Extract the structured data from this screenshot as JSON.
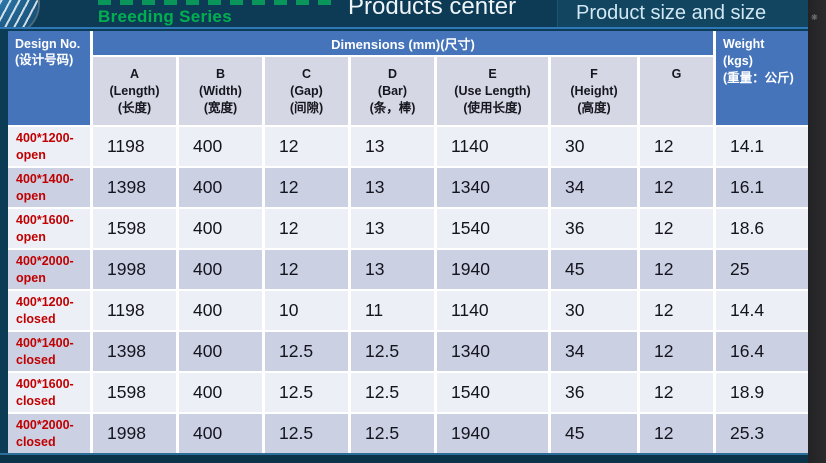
{
  "top_bar": {
    "brand": "Breeding Series",
    "title_left": "Products center",
    "title_right": "Product size and size"
  },
  "table": {
    "design_header": {
      "line1": "Design No.",
      "line2": "(设计号码)"
    },
    "dimensions_header": "Dimensions (mm)(尺寸)",
    "weight_header": {
      "line1": "Weight",
      "line2": "(kgs)",
      "line3": "(重量：公斤)"
    },
    "columns": [
      {
        "letter": "A",
        "en": "(Length)",
        "zh": "(长度)"
      },
      {
        "letter": "B",
        "en": "(Width)",
        "zh": "(宽度)"
      },
      {
        "letter": "C",
        "en": "(Gap)",
        "zh": "(间隙)"
      },
      {
        "letter": "D",
        "en": "(Bar)",
        "zh": "(条，棒)"
      },
      {
        "letter": "E",
        "en": "(Use Length)",
        "zh": "(使用长度)"
      },
      {
        "letter": "F",
        "en": "(Height)",
        "zh": "(高度)"
      },
      {
        "letter": "G",
        "en": "",
        "zh": ""
      }
    ],
    "rows": [
      {
        "design1": "400*1200-",
        "design2": "open",
        "a": "1198",
        "b": "400",
        "c": "12",
        "d": "13",
        "e": "1140",
        "f": "30",
        "g": "12",
        "weight": "14.1"
      },
      {
        "design1": "400*1400-",
        "design2": "open",
        "a": "1398",
        "b": "400",
        "c": "12",
        "d": "13",
        "e": "1340",
        "f": "34",
        "g": "12",
        "weight": "16.1"
      },
      {
        "design1": "400*1600-",
        "design2": "open",
        "a": "1598",
        "b": "400",
        "c": "12",
        "d": "13",
        "e": "1540",
        "f": "36",
        "g": "12",
        "weight": "18.6"
      },
      {
        "design1": "400*2000-",
        "design2": "open",
        "a": "1998",
        "b": "400",
        "c": "12",
        "d": "13",
        "e": "1940",
        "f": "45",
        "g": "12",
        "weight": "25"
      },
      {
        "design1": "400*1200-",
        "design2": "closed",
        "a": "1198",
        "b": "400",
        "c": "10",
        "d": "11",
        "e": "1140",
        "f": "30",
        "g": "12",
        "weight": "14.4"
      },
      {
        "design1": "400*1400-",
        "design2": "closed",
        "a": "1398",
        "b": "400",
        "c": "12.5",
        "d": "12.5",
        "e": "1340",
        "f": "34",
        "g": "12",
        "weight": "16.4"
      },
      {
        "design1": "400*1600-",
        "design2": "closed",
        "a": "1598",
        "b": "400",
        "c": "12.5",
        "d": "12.5",
        "e": "1540",
        "f": "36",
        "g": "12",
        "weight": "18.9"
      },
      {
        "design1": "400*2000-",
        "design2": "closed",
        "a": "1998",
        "b": "400",
        "c": "12.5",
        "d": "12.5",
        "e": "1940",
        "f": "45",
        "g": "12",
        "weight": "25.3"
      }
    ]
  },
  "colors": {
    "top_band": "#0d3b55",
    "header_blue": "#4574ba",
    "subheader_gray": "#d5d8e4",
    "row_light": "#edeff7",
    "row_dark": "#cbd0e2",
    "design_red": "#c00000",
    "brand_green": "#00b050",
    "accent_line_blue": "#2e78b8"
  }
}
